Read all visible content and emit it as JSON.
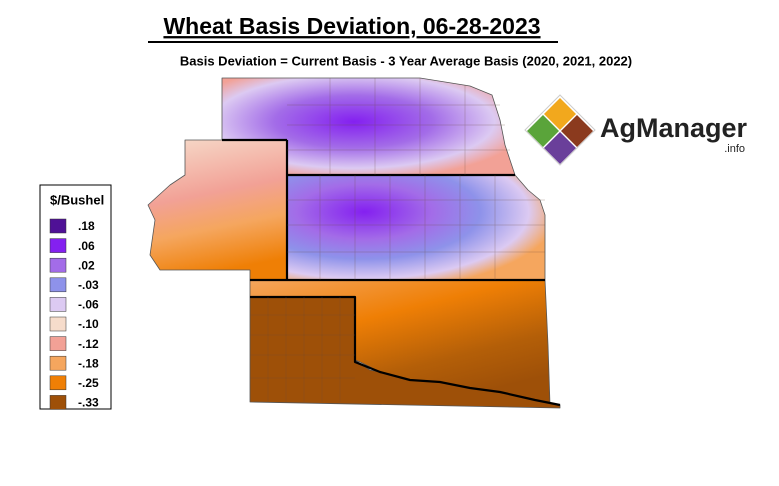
{
  "header": {
    "title": "Wheat Basis Deviation, 06-28-2023",
    "subtitle": "Basis Deviation = Current Basis - 3 Year Average Basis (2020, 2021, 2022)"
  },
  "legend": {
    "title": "$/Bushel",
    "items": [
      {
        "label": ".18",
        "color": "#4f1196"
      },
      {
        "label": ".06",
        "color": "#8420f0"
      },
      {
        "label": ".02",
        "color": "#a36ce8"
      },
      {
        "label": "-.03",
        "color": "#8e92ea"
      },
      {
        "label": "-.06",
        "color": "#dccaf2"
      },
      {
        "label": "-.10",
        "color": "#f6dccb"
      },
      {
        "label": "-.12",
        "color": "#f2a196"
      },
      {
        "label": "-.18",
        "color": "#f5a65e"
      },
      {
        "label": "-.25",
        "color": "#ef7f05"
      },
      {
        "label": "-.33",
        "color": "#9e5008"
      }
    ]
  },
  "logo": {
    "name": "AgManager",
    "suffix": ".info"
  }
}
